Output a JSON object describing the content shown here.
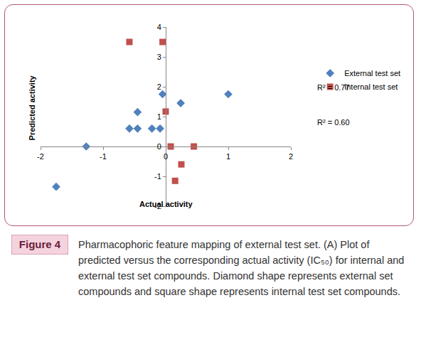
{
  "chart_data": {
    "type": "scatter",
    "x_label": "Actual activity",
    "y_label": "Predicted activity",
    "xlim": [
      -2,
      2
    ],
    "xticks": [
      -2,
      -1,
      0,
      1,
      2
    ],
    "ylim": [
      -2,
      4
    ],
    "yticks": [
      -2,
      -1,
      0,
      1,
      2,
      3,
      4
    ],
    "grid": false,
    "legend": "right",
    "annotations": [
      "R² = 0.77",
      "R² = 0.60"
    ],
    "series": [
      {
        "name": "External test set",
        "color": "#4f81bd",
        "marker": "diamond",
        "x": [
          -1.75,
          -1.27,
          -0.58,
          -0.45,
          -0.45,
          -0.22,
          -0.09,
          -0.05,
          0.24,
          1.0
        ],
        "values": [
          -1.35,
          0.0,
          0.6,
          0.6,
          1.15,
          0.6,
          0.6,
          1.75,
          1.45,
          1.75
        ]
      },
      {
        "name": "Internal test set",
        "color": "#c0504d",
        "marker": "square",
        "x": [
          -0.58,
          -0.05,
          0.0,
          0.08,
          0.45,
          0.25,
          0.15
        ],
        "values": [
          3.5,
          3.5,
          1.17,
          0.0,
          0.0,
          -0.6,
          -1.15
        ]
      }
    ]
  },
  "figure": {
    "label": "Figure 4",
    "caption": "Pharmacophoric feature mapping of external test set. (A) Plot of predicted versus the corresponding actual activity (IC₅₀) for internal and external test set compounds. Diamond shape represents external set compounds and square shape represents internal test set compounds."
  }
}
